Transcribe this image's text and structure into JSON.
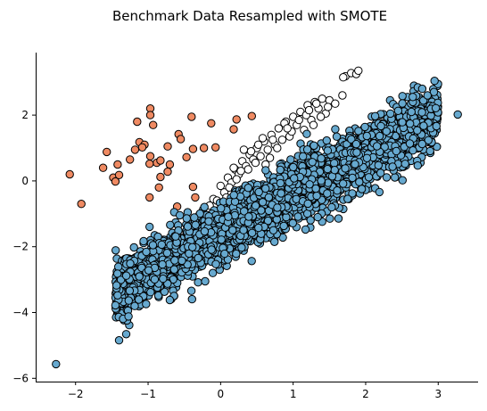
{
  "chart_data": {
    "type": "scatter",
    "title": "Benchmark Data Resampled with SMOTE",
    "xlabel": "",
    "ylabel": "",
    "xlim": [
      -2.55,
      3.55
    ],
    "ylim": [
      -6.1,
      3.9
    ],
    "x_ticks": [
      -2,
      -1,
      0,
      1,
      2,
      3
    ],
    "y_ticks": [
      -6,
      -4,
      -2,
      0,
      2
    ],
    "grid": false,
    "legend": "none",
    "series": [
      {
        "color": "#ffffff",
        "edge_color": "#000000",
        "points": [
          [
            1.72,
            3.18
          ],
          [
            1.8,
            3.28
          ],
          [
            1.87,
            3.25
          ],
          [
            1.9,
            3.35
          ],
          [
            1.68,
            2.6
          ],
          [
            1.69,
            3.15
          ],
          [
            1.4,
            2.5
          ],
          [
            1.3,
            2.4
          ],
          [
            1.2,
            2.3
          ],
          [
            1.5,
            2.45
          ],
          [
            1.1,
            2.1
          ],
          [
            1.0,
            1.95
          ],
          [
            0.9,
            1.8
          ],
          [
            0.8,
            1.6
          ],
          [
            0.7,
            1.4
          ],
          [
            0.6,
            1.2
          ],
          [
            0.5,
            1.0
          ],
          [
            0.4,
            0.8
          ],
          [
            0.3,
            0.6
          ],
          [
            0.2,
            0.35
          ],
          [
            0.1,
            0.1
          ],
          [
            0.0,
            -0.15
          ],
          [
            -0.1,
            -0.55
          ],
          [
            -0.15,
            -0.75
          ],
          [
            -0.1,
            -1.1
          ],
          [
            0.0,
            -1.2
          ],
          [
            1.25,
            1.85
          ],
          [
            1.15,
            1.55
          ],
          [
            0.95,
            1.35
          ],
          [
            0.85,
            1.25
          ],
          [
            0.65,
            0.95
          ],
          [
            0.55,
            0.75
          ],
          [
            0.35,
            0.45
          ],
          [
            0.25,
            0.2
          ],
          [
            0.05,
            -0.35
          ],
          [
            1.35,
            2.2
          ],
          [
            1.45,
            2.05
          ],
          [
            1.05,
            1.7
          ],
          [
            0.75,
            1.1
          ],
          [
            0.45,
            0.65
          ],
          [
            0.15,
            -0.05
          ],
          [
            -0.05,
            -0.6
          ],
          [
            0.32,
            0.95
          ],
          [
            0.58,
            1.3
          ],
          [
            0.88,
            1.75
          ],
          [
            1.18,
            2.0
          ],
          [
            1.28,
            1.7
          ],
          [
            0.68,
            0.7
          ],
          [
            0.38,
            0.35
          ],
          [
            0.12,
            -0.2
          ],
          [
            -0.08,
            -0.95
          ],
          [
            1.58,
            2.35
          ],
          [
            1.48,
            2.25
          ],
          [
            0.98,
            1.5
          ],
          [
            0.78,
            1.0
          ],
          [
            0.48,
            0.55
          ],
          [
            0.22,
            0.05
          ],
          [
            1.38,
            1.95
          ],
          [
            0.62,
            0.5
          ],
          [
            0.28,
            0.3
          ],
          [
            0.08,
            -0.5
          ],
          [
            1.08,
            1.85
          ],
          [
            0.92,
            1.6
          ],
          [
            0.72,
            1.25
          ],
          [
            0.42,
            0.9
          ],
          [
            0.18,
            0.4
          ],
          [
            1.22,
            2.15
          ],
          [
            1.32,
            2.35
          ],
          [
            0.52,
            1.1
          ],
          [
            0.02,
            -0.8
          ]
        ]
      },
      {
        "color": "#ef8a62",
        "edge_color": "#000000",
        "points": [
          [
            -0.97,
            2.2
          ],
          [
            -0.97,
            2.0
          ],
          [
            -1.15,
            1.8
          ],
          [
            -0.93,
            1.7
          ],
          [
            -0.4,
            1.95
          ],
          [
            -0.13,
            1.75
          ],
          [
            0.22,
            1.87
          ],
          [
            0.43,
            1.97
          ],
          [
            0.18,
            1.57
          ],
          [
            -0.58,
            1.42
          ],
          [
            -0.55,
            1.27
          ],
          [
            -1.12,
            1.18
          ],
          [
            -1.05,
            1.1
          ],
          [
            -1.08,
            1.02
          ],
          [
            -0.73,
            1.05
          ],
          [
            -0.23,
            1.0
          ],
          [
            -0.07,
            1.02
          ],
          [
            -0.38,
            0.97
          ],
          [
            -0.47,
            0.72
          ],
          [
            -0.97,
            0.75
          ],
          [
            -0.88,
            0.55
          ],
          [
            -0.83,
            0.62
          ],
          [
            -0.98,
            0.52
          ],
          [
            -0.7,
            0.5
          ],
          [
            -0.73,
            0.28
          ],
          [
            -0.83,
            0.12
          ],
          [
            -1.57,
            0.88
          ],
          [
            -1.18,
            0.95
          ],
          [
            -1.25,
            0.65
          ],
          [
            -1.42,
            0.5
          ],
          [
            -1.62,
            0.4
          ],
          [
            -1.48,
            0.1
          ],
          [
            -1.45,
            -0.02
          ],
          [
            -1.4,
            0.18
          ],
          [
            -2.08,
            0.2
          ],
          [
            -1.92,
            -0.7
          ],
          [
            -0.98,
            -0.5
          ],
          [
            -0.85,
            -0.2
          ],
          [
            -0.38,
            -0.18
          ],
          [
            -0.35,
            -0.5
          ],
          [
            -0.6,
            -0.78
          ],
          [
            0.3,
            -1.3
          ]
        ]
      },
      {
        "color": "#67a9cf",
        "edge_color": "#000000",
        "generated_count": 3400,
        "anchor_points": [
          [
            -2.27,
            -5.57
          ],
          [
            3.27,
            2.02
          ],
          [
            2.95,
            3.04
          ],
          [
            2.78,
            2.8
          ],
          [
            2.65,
            2.55
          ],
          [
            -1.27,
            -4.12
          ],
          [
            -1.45,
            -3.78
          ],
          [
            -1.42,
            -3.48
          ],
          [
            -1.3,
            -2.88
          ],
          [
            -0.7,
            -3.62
          ]
        ],
        "band": {
          "slope": 1.2,
          "intercept": -1.6,
          "spread": 0.45,
          "x_min": -1.45,
          "x_max": 3.0
        }
      }
    ]
  }
}
